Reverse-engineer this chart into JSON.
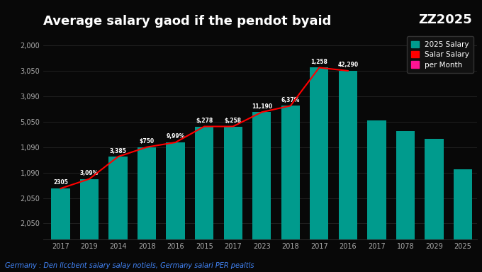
{
  "title_left": "Average salary gaod if the pendot byaid",
  "subtitle": "Germany : Den llccbent salary salay notiels, Germany salari PER pealtls",
  "categories": [
    "2017",
    "2019",
    "2014",
    "2018",
    "2016",
    "2015",
    "2017",
    "2023",
    "2018",
    "2017",
    "2016",
    "2017",
    "1078",
    "2029",
    "2025"
  ],
  "bar_heights": [
    2.6,
    2.9,
    3.6,
    3.9,
    4.05,
    4.55,
    4.55,
    5.0,
    5.2,
    6.4,
    6.3,
    4.75,
    4.4,
    4.15,
    3.2
  ],
  "line_indices": [
    0,
    1,
    2,
    3,
    4,
    5,
    6,
    7,
    8,
    9,
    10
  ],
  "bar_color": "#009B8D",
  "line_color": "#FF0000",
  "background_color": "#080808",
  "text_color": "#FFFFFF",
  "axis_label_color": "#AAAAAA",
  "grid_color": "#2A2A2A",
  "annotations": [
    {
      "idx": 0,
      "text": "2305"
    },
    {
      "idx": 1,
      "text": "3,09%"
    },
    {
      "idx": 2,
      "text": "3,385"
    },
    {
      "idx": 3,
      "text": "$750"
    },
    {
      "idx": 4,
      "text": "9,99%"
    },
    {
      "idx": 5,
      "text": "$,278"
    },
    {
      "idx": 6,
      "text": "$,258"
    },
    {
      "idx": 7,
      "text": "11,190"
    },
    {
      "idx": 8,
      "text": "6,37%"
    },
    {
      "idx": 9,
      "text": "1,258"
    },
    {
      "idx": 10,
      "text": "42,290"
    }
  ],
  "ytick_positions": [
    1.5,
    2.3,
    3.1,
    3.9,
    4.7,
    5.5,
    6.3,
    7.1
  ],
  "ytick_labels": [
    "2,050",
    "2,050",
    "1,090",
    "1,090",
    "5,050",
    "3,090",
    "3,050",
    "2,000"
  ],
  "legend_items": [
    {
      "label": "2025 Salary",
      "color": "#009B8D"
    },
    {
      "label": "Salar Salary",
      "color": "#FF0000"
    },
    {
      "label": "per Month",
      "color": "#FF1493"
    }
  ],
  "ylim": [
    1.0,
    7.5
  ],
  "xlim": [
    -0.6,
    14.5
  ],
  "figsize": [
    6.8,
    3.84
  ],
  "dpi": 100
}
